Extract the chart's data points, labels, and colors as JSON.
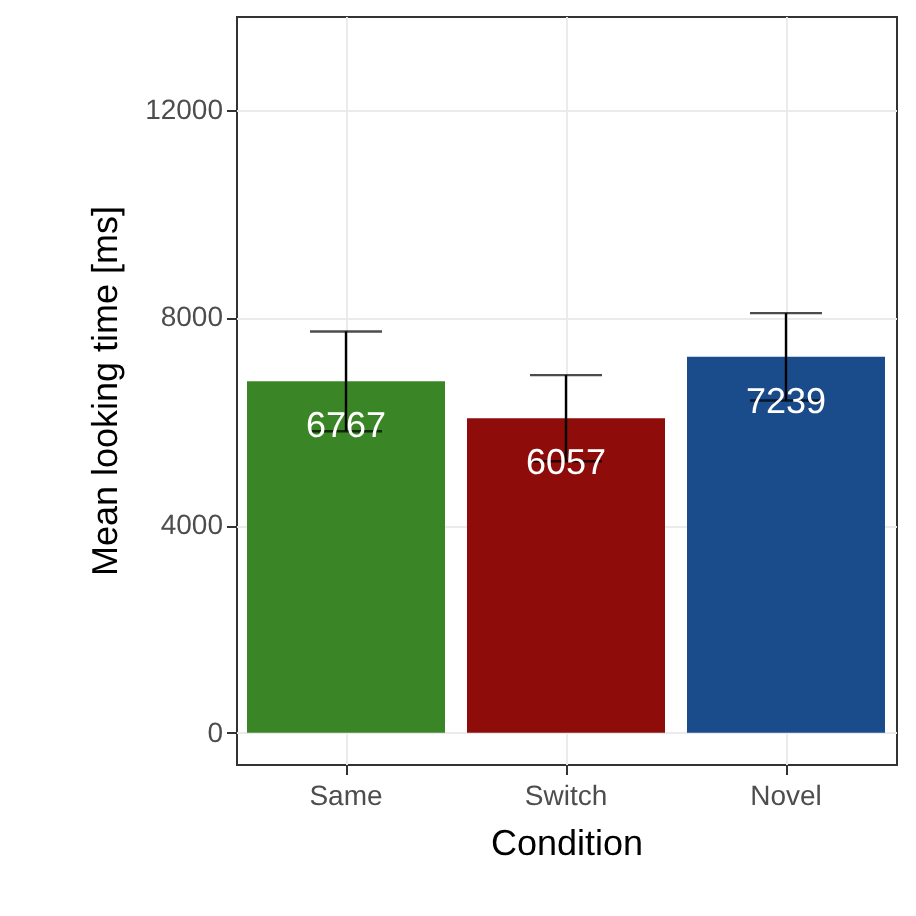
{
  "chart_data": {
    "type": "bar",
    "xlabel": "Condition",
    "ylabel": "Mean looking time [ms]",
    "categories": [
      "Same",
      "Switch",
      "Novel"
    ],
    "values": [
      6767,
      6057,
      7239
    ],
    "errors": [
      960,
      830,
      840
    ],
    "colors": [
      "#3a8627",
      "#8e0c09",
      "#1a4b8a"
    ],
    "ylim": [
      -600,
      13800
    ],
    "yticks": [
      0,
      4000,
      8000,
      12000
    ],
    "data_labels": true,
    "grid": true
  }
}
